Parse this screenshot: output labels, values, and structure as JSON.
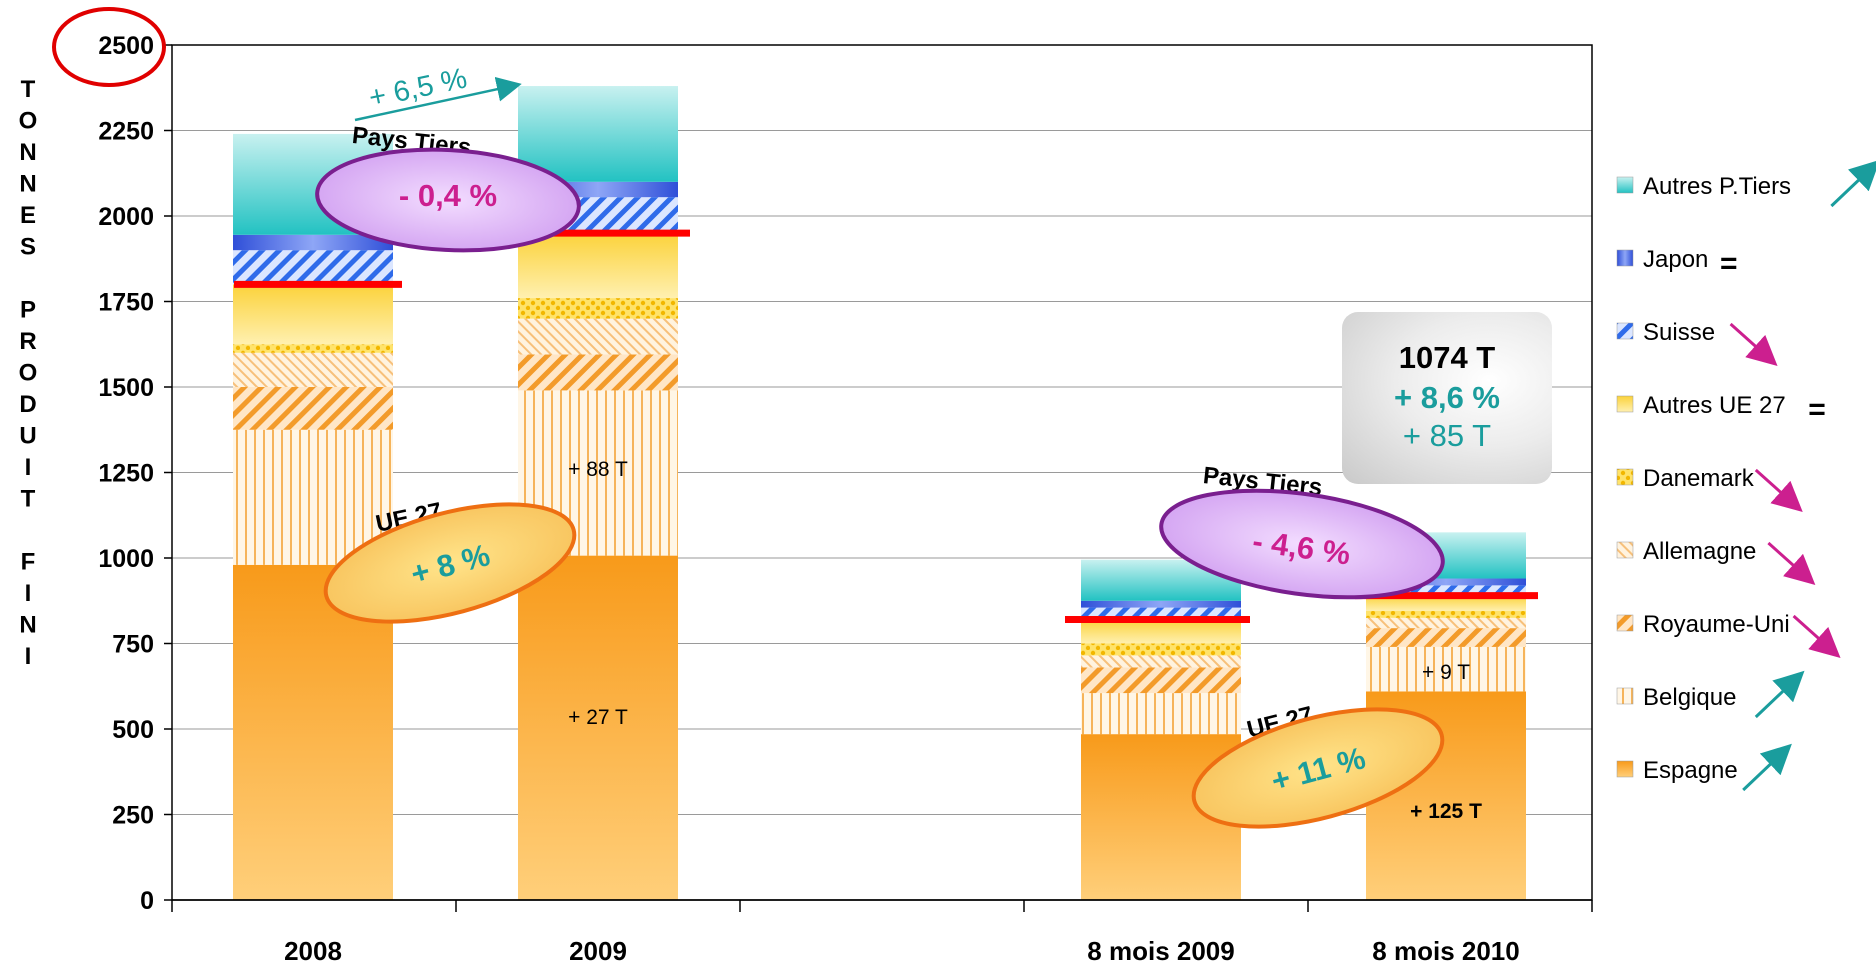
{
  "chart_data": {
    "type": "bar",
    "stacked": true,
    "ylabel": "TONNES PRODUIT FINI",
    "ylim": [
      0,
      2500
    ],
    "yticks": [
      "0",
      "250",
      "500",
      "750",
      "1000",
      "1250",
      "1500",
      "1750",
      "2000",
      "2250",
      "2500"
    ],
    "categories": [
      "2008",
      "2009",
      "8 mois 2009",
      "8 mois 2010"
    ],
    "series": [
      {
        "name": "Espagne",
        "values": [
          980,
          1007,
          485,
          610
        ],
        "trend": "up"
      },
      {
        "name": "Belgique",
        "values": [
          395,
          483,
          120,
          130
        ],
        "trend": "up"
      },
      {
        "name": "Royaume-Uni",
        "values": [
          125,
          105,
          75,
          55
        ],
        "trend": "down"
      },
      {
        "name": "Allemagne",
        "values": [
          100,
          105,
          35,
          30
        ],
        "trend": "down"
      },
      {
        "name": "Danemark",
        "values": [
          25,
          60,
          35,
          20
        ],
        "trend": "down"
      },
      {
        "name": "Autres UE 27",
        "values": [
          175,
          190,
          70,
          45
        ],
        "trend": "equal"
      },
      {
        "name": "Suisse",
        "values": [
          100,
          105,
          35,
          30
        ],
        "trend": "down"
      },
      {
        "name": "Japon",
        "values": [
          45,
          45,
          20,
          20
        ],
        "trend": "equal"
      },
      {
        "name": "Autres P.Tiers",
        "values": [
          295,
          280,
          120,
          135
        ],
        "trend": "up"
      }
    ],
    "ue27_totals_line": [
      1800,
      1950,
      820,
      890
    ],
    "legend_position": "right",
    "grid": true
  },
  "annotations": {
    "growth_top": "+ 6,5 %",
    "left_pays_tiers_label": "Pays Tiers",
    "left_pays_tiers_value": "- 0,4 %",
    "left_ue_label": "UE 27",
    "left_ue_value": "+ 8 %",
    "right_pays_tiers_label": "Pays Tiers",
    "right_pays_tiers_value": "- 4,6 %",
    "right_ue_label": "UE 27",
    "right_ue_value": "+ 11 %",
    "note_88": "+ 88 T",
    "note_27": "+ 27 T",
    "note_9": "+ 9 T",
    "note_125": "+ 125 T"
  },
  "callout": {
    "total": "1074 T",
    "pct": "+ 8,6 %",
    "delta": "+ 85 T"
  },
  "colors": {
    "accent_teal": "#1a9d9d",
    "accent_magenta": "#cc1f8f",
    "red_line": "#ff0000",
    "ellipse_purple": "#7a1f8f",
    "ellipse_orange": "#ee6f12"
  }
}
